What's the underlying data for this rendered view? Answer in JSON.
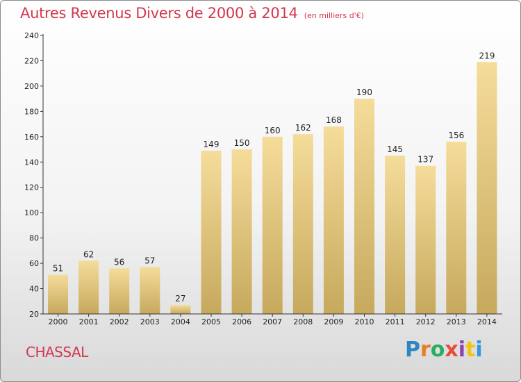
{
  "header": {
    "title": "Autres Revenus Divers de 2000 à 2014",
    "subtitle": "(en milliers d'€)"
  },
  "footer": {
    "commune": "CHASSAL",
    "logo_text": "Proxiti",
    "logo_colors": [
      "#2e86c1",
      "#e67e22",
      "#27ae60",
      "#e74c3c",
      "#8e44ad",
      "#f1c40f",
      "#3498db"
    ]
  },
  "chart_data": {
    "type": "bar",
    "title": "Autres Revenus Divers de 2000 à 2014",
    "subtitle": "(en milliers d'€)",
    "xlabel": "",
    "ylabel": "",
    "categories": [
      "2000",
      "2001",
      "2002",
      "2003",
      "2004",
      "2005",
      "2006",
      "2007",
      "2008",
      "2009",
      "2010",
      "2011",
      "2012",
      "2013",
      "2014"
    ],
    "values": [
      51,
      62,
      56,
      57,
      27,
      149,
      150,
      160,
      162,
      168,
      190,
      145,
      137,
      156,
      219
    ],
    "ylim": [
      20,
      240
    ],
    "yticks": [
      20,
      40,
      60,
      80,
      100,
      120,
      140,
      160,
      180,
      200,
      220,
      240
    ],
    "grid": false,
    "legend": "none",
    "bar_color_top": "#f5dc9a",
    "bar_color_bottom": "#c6a95d"
  }
}
